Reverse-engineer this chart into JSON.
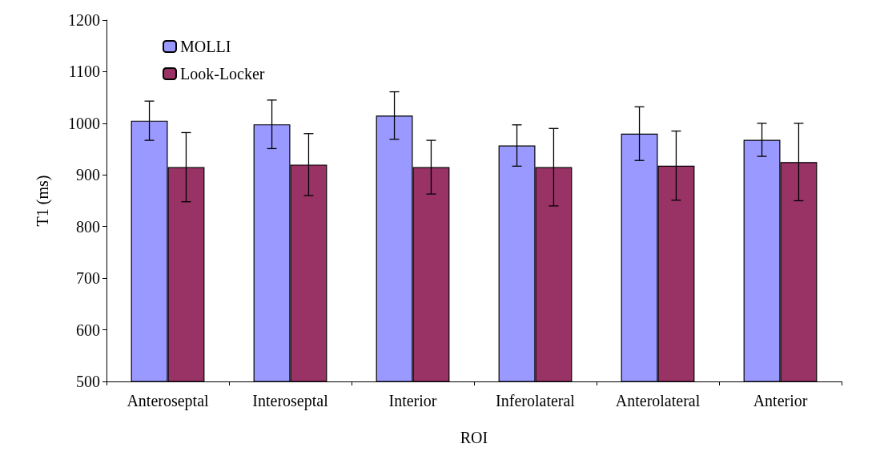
{
  "chart_data": {
    "type": "bar",
    "xlabel": "ROI",
    "ylabel": "T1 (ms)",
    "categories": [
      "Anteroseptal",
      "Interoseptal",
      "Interior",
      "Inferolateral",
      "Anterolateral",
      "Anterior"
    ],
    "series": [
      {
        "name": "MOLLI",
        "color": "#9999ff",
        "values": [
          1005,
          998,
          1015,
          957,
          980,
          968
        ],
        "errors": [
          38,
          47,
          46,
          40,
          52,
          32
        ]
      },
      {
        "name": "Look-Locker",
        "color": "#993366",
        "values": [
          915,
          920,
          915,
          915,
          918,
          925
        ],
        "errors": [
          67,
          60,
          52,
          75,
          67,
          75
        ]
      }
    ],
    "ylim": [
      500,
      1200
    ],
    "yticks": [
      500,
      600,
      700,
      800,
      900,
      1000,
      1100,
      1200
    ],
    "grid": false,
    "legend": "top left"
  }
}
